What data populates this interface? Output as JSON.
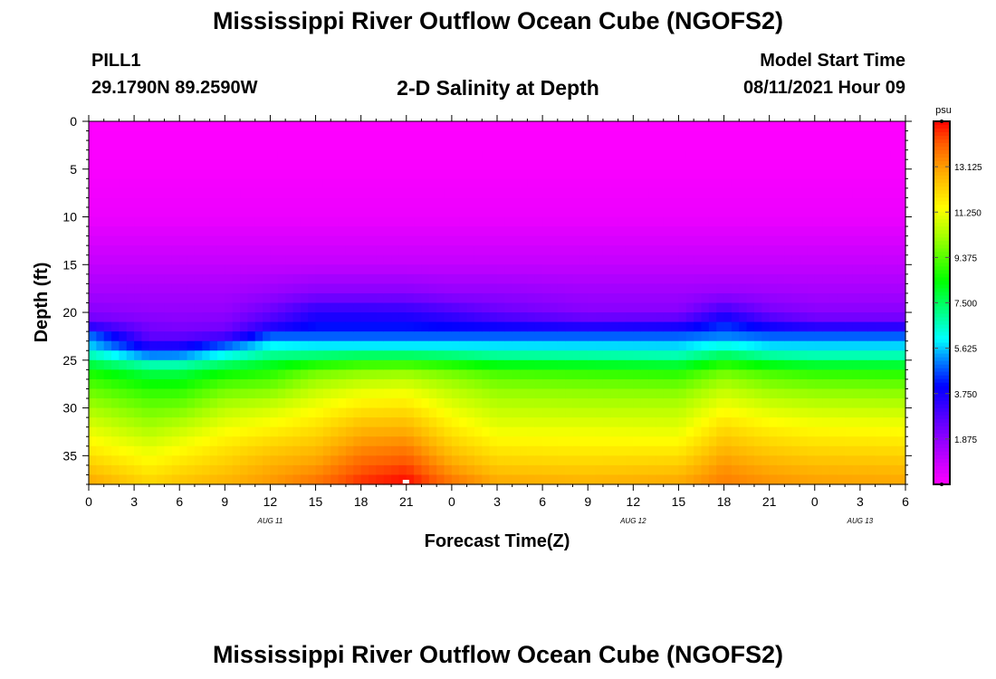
{
  "header": {
    "title": "Mississippi River Outflow Ocean Cube (NGOFS2)",
    "station": "PILL1",
    "location": "29.1790N  89.2590W",
    "subtitle": "2-D Salinity at Depth",
    "model_start_label": "Model Start Time",
    "model_start_value": "08/11/2021 Hour 09"
  },
  "footer": {
    "title": "Mississippi River Outflow Ocean Cube (NGOFS2)"
  },
  "chart_data": {
    "type": "heatmap",
    "xlabel": "Forecast Time(Z)",
    "ylabel": "Depth (ft)",
    "x_tick_labels": [
      "0",
      "3",
      "6",
      "9",
      "12",
      "15",
      "18",
      "21",
      "0",
      "3",
      "6",
      "9",
      "12",
      "15",
      "18",
      "21",
      "0",
      "3",
      "6"
    ],
    "x_range_hours": [
      0,
      54
    ],
    "date_labels": [
      {
        "text": "AUG  11",
        "hour": 12
      },
      {
        "text": "AUG  12",
        "hour": 36
      },
      {
        "text": "AUG  13",
        "hour": 51
      }
    ],
    "y_ticks": [
      0,
      5,
      10,
      15,
      20,
      25,
      30,
      35
    ],
    "ylim": [
      0,
      38
    ],
    "y_inverted": true,
    "colorbar": {
      "unit": "psu",
      "min": 0,
      "max": 15,
      "ticks": [
        "13.125",
        "11.250",
        "9.375",
        "7.500",
        "5.625",
        "3.750",
        "1.875"
      ],
      "tick_values": [
        13.125,
        11.25,
        9.375,
        7.5,
        5.625,
        3.75,
        1.875
      ]
    },
    "salinity_profiles": {
      "depth_ft": [
        0,
        5,
        10,
        15,
        18,
        20,
        21,
        22,
        22.5,
        23,
        24,
        25,
        26,
        28,
        30,
        32,
        34,
        36,
        38
      ],
      "profiles": [
        {
          "hour": 0,
          "psu": [
            0,
            0.1,
            0.3,
            1.0,
            1.5,
            2.0,
            2.5,
            4.3,
            5.0,
            5.2,
            6.2,
            7.2,
            8.5,
            9.5,
            10.3,
            11.0,
            11.6,
            12.3,
            13.0
          ]
        },
        {
          "hour": 4,
          "psu": [
            0,
            0.1,
            0.3,
            1.0,
            1.5,
            1.8,
            2.1,
            2.4,
            2.6,
            3.0,
            4.2,
            6.0,
            7.5,
            8.8,
            9.6,
            10.3,
            11.0,
            11.6,
            12.2
          ]
        },
        {
          "hour": 6,
          "psu": [
            0,
            0.1,
            0.3,
            1.0,
            1.5,
            1.8,
            2.0,
            2.3,
            2.6,
            3.0,
            4.3,
            6.0,
            7.5,
            8.8,
            9.7,
            10.6,
            11.3,
            11.9,
            12.5
          ]
        },
        {
          "hour": 9,
          "psu": [
            0,
            0.1,
            0.3,
            1.0,
            1.5,
            1.8,
            2.1,
            2.4,
            3.0,
            4.0,
            5.5,
            6.8,
            8.2,
            9.6,
            10.5,
            11.2,
            11.8,
            12.3,
            12.8
          ]
        },
        {
          "hour": 12,
          "psu": [
            0,
            0.1,
            0.3,
            1.0,
            1.7,
            2.5,
            3.0,
            4.0,
            4.8,
            5.5,
            6.5,
            7.6,
            8.6,
            9.8,
            10.8,
            11.5,
            12.2,
            12.8,
            13.2
          ]
        },
        {
          "hour": 15,
          "psu": [
            0,
            0.1,
            0.3,
            1.0,
            2.0,
            3.5,
            3.8,
            4.5,
            4.8,
            5.2,
            6.5,
            8.0,
            9.5,
            10.6,
            11.3,
            11.9,
            12.5,
            13.1,
            13.8
          ]
        },
        {
          "hour": 18,
          "psu": [
            0,
            0.1,
            0.3,
            1.0,
            2.0,
            3.5,
            3.8,
            4.5,
            4.8,
            5.2,
            6.5,
            8.4,
            9.8,
            11.0,
            11.8,
            12.6,
            13.3,
            14.0,
            14.6
          ]
        },
        {
          "hour": 21,
          "psu": [
            0,
            0.1,
            0.3,
            1.0,
            2.0,
            3.4,
            3.8,
            4.5,
            4.8,
            5.2,
            6.5,
            8.4,
            9.9,
            11.1,
            11.9,
            12.7,
            13.5,
            14.3,
            15.0
          ]
        },
        {
          "hour": 24,
          "psu": [
            0,
            0.1,
            0.3,
            1.0,
            1.8,
            3.0,
            3.6,
            4.4,
            4.8,
            5.2,
            6.5,
            8.0,
            9.5,
            10.5,
            11.1,
            11.7,
            12.3,
            13.0,
            13.8
          ]
        },
        {
          "hour": 27,
          "psu": [
            0,
            0.1,
            0.3,
            1.0,
            1.8,
            2.5,
            3.3,
            4.4,
            4.8,
            5.2,
            6.4,
            7.5,
            9.0,
            10.0,
            10.6,
            11.1,
            11.7,
            12.3,
            13.0
          ]
        },
        {
          "hour": 33,
          "psu": [
            0,
            0.1,
            0.3,
            1.0,
            1.6,
            2.0,
            2.8,
            4.3,
            4.8,
            5.2,
            6.3,
            7.4,
            8.8,
            9.9,
            10.5,
            11.1,
            11.6,
            12.2,
            12.8
          ]
        },
        {
          "hour": 39,
          "psu": [
            0,
            0.1,
            0.3,
            1.0,
            1.6,
            2.0,
            3.0,
            4.4,
            4.8,
            5.2,
            6.2,
            7.2,
            8.6,
            9.8,
            10.5,
            11.0,
            11.6,
            12.3,
            13.0
          ]
        },
        {
          "hour": 42,
          "psu": [
            0,
            0.1,
            0.3,
            1.0,
            1.7,
            3.2,
            4.2,
            4.7,
            5.1,
            5.6,
            6.8,
            8.2,
            9.5,
            10.6,
            11.3,
            12.0,
            12.6,
            13.2,
            13.6
          ]
        },
        {
          "hour": 45,
          "psu": [
            0,
            0.1,
            0.3,
            1.0,
            1.6,
            2.3,
            3.2,
            4.4,
            4.8,
            5.2,
            6.3,
            7.5,
            9.0,
            10.1,
            10.9,
            11.6,
            12.2,
            12.8,
            13.3
          ]
        },
        {
          "hour": 48,
          "psu": [
            0,
            0.1,
            0.3,
            1.0,
            1.5,
            2.0,
            2.6,
            4.3,
            4.8,
            5.2,
            6.2,
            7.2,
            8.7,
            9.9,
            10.7,
            11.4,
            12.0,
            12.6,
            13.1
          ]
        },
        {
          "hour": 54,
          "psu": [
            0,
            0.1,
            0.3,
            1.0,
            1.5,
            2.0,
            2.5,
            4.3,
            4.8,
            5.2,
            6.2,
            7.2,
            8.6,
            9.8,
            10.6,
            11.3,
            11.9,
            12.5,
            13.0
          ]
        }
      ]
    },
    "max_marker": {
      "hour": 21,
      "depth_ft": 38
    }
  }
}
